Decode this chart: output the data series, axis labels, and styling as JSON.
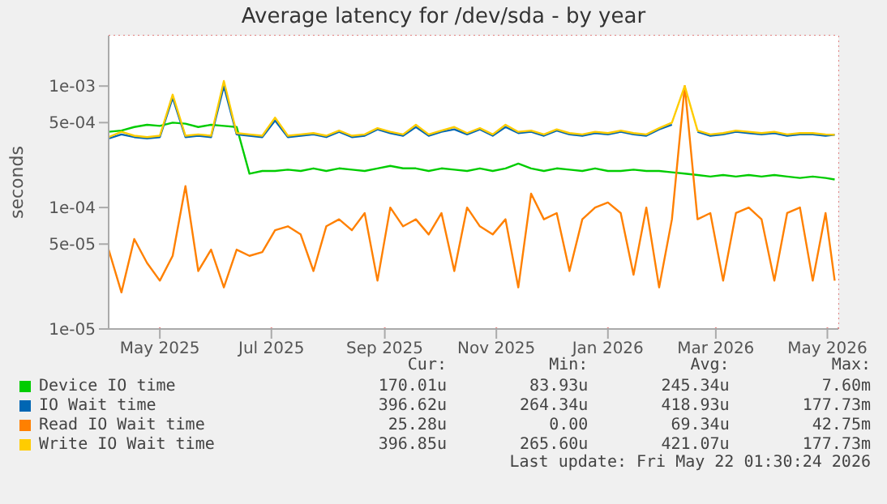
{
  "chart_data": {
    "type": "line",
    "title": "Average latency for /dev/sda - by year",
    "ylabel": "seconds",
    "log": "y",
    "grid": true,
    "legend": "bottom",
    "marker": "none",
    "line_style": "solid",
    "xlim": [
      "2025-04-03",
      "2026-05-07"
    ],
    "xticks": [
      {
        "value": "2025-05-01",
        "label": "May 2025"
      },
      {
        "value": "2025-07-01",
        "label": "Jul 2025"
      },
      {
        "value": "2025-09-01",
        "label": "Sep 2025"
      },
      {
        "value": "2025-11-01",
        "label": "Nov 2025"
      },
      {
        "value": "2026-01-01",
        "label": "Jan 2026"
      },
      {
        "value": "2026-03-01",
        "label": "Mar 2026"
      },
      {
        "value": "2026-05-01",
        "label": "May 2026"
      }
    ],
    "ylim": [
      1e-05,
      0.0026
    ],
    "yticks": [
      {
        "value": 1e-05,
        "label": "1e-05"
      },
      {
        "value": 5e-05,
        "label": "5e-05"
      },
      {
        "value": 0.0001,
        "label": "1e-04"
      },
      {
        "value": 0.0005,
        "label": "5e-04"
      },
      {
        "value": 0.001,
        "label": "1e-03"
      }
    ],
    "x": [
      "2025-04-03",
      "2025-04-10",
      "2025-04-17",
      "2025-04-24",
      "2025-05-01",
      "2025-05-08",
      "2025-05-15",
      "2025-05-22",
      "2025-05-29",
      "2025-06-05",
      "2025-06-12",
      "2025-06-19",
      "2025-06-26",
      "2025-07-03",
      "2025-07-10",
      "2025-07-17",
      "2025-07-24",
      "2025-07-31",
      "2025-08-07",
      "2025-08-14",
      "2025-08-21",
      "2025-08-28",
      "2025-09-04",
      "2025-09-11",
      "2025-09-18",
      "2025-09-25",
      "2025-10-02",
      "2025-10-09",
      "2025-10-16",
      "2025-10-23",
      "2025-10-30",
      "2025-11-06",
      "2025-11-13",
      "2025-11-20",
      "2025-11-27",
      "2025-12-04",
      "2025-12-11",
      "2025-12-18",
      "2025-12-25",
      "2026-01-01",
      "2026-01-08",
      "2026-01-15",
      "2026-01-22",
      "2026-01-29",
      "2026-02-05",
      "2026-02-12",
      "2026-02-19",
      "2026-02-26",
      "2026-03-05",
      "2026-03-12",
      "2026-03-19",
      "2026-03-26",
      "2026-04-02",
      "2026-04-09",
      "2026-04-16",
      "2026-04-23",
      "2026-04-30",
      "2026-05-05"
    ],
    "series": [
      {
        "name": "Device IO time",
        "color": "#00cc00",
        "values": [
          0.00042,
          0.00043,
          0.00046,
          0.00048,
          0.00047,
          0.0005,
          0.00049,
          0.00046,
          0.00048,
          0.00047,
          0.00046,
          0.00019,
          0.0002,
          0.0002,
          0.000205,
          0.0002,
          0.00021,
          0.0002,
          0.00021,
          0.000205,
          0.0002,
          0.00021,
          0.00022,
          0.00021,
          0.00021,
          0.0002,
          0.00021,
          0.000205,
          0.0002,
          0.00021,
          0.0002,
          0.00021,
          0.00023,
          0.00021,
          0.0002,
          0.00021,
          0.000205,
          0.0002,
          0.00021,
          0.0002,
          0.0002,
          0.000205,
          0.0002,
          0.0002,
          0.000195,
          0.00019,
          0.000185,
          0.00018,
          0.000185,
          0.00018,
          0.000185,
          0.00018,
          0.000185,
          0.00018,
          0.000175,
          0.00018,
          0.000175,
          0.00017
        ]
      },
      {
        "name": "IO Wait time",
        "color": "#0066b3",
        "values": [
          0.00037,
          0.0004,
          0.00038,
          0.00037,
          0.00038,
          0.0008,
          0.00038,
          0.00039,
          0.00038,
          0.001,
          0.0004,
          0.00039,
          0.00038,
          0.00052,
          0.00038,
          0.00039,
          0.0004,
          0.00038,
          0.00042,
          0.00038,
          0.00039,
          0.00044,
          0.00041,
          0.00039,
          0.00046,
          0.00039,
          0.00042,
          0.00044,
          0.0004,
          0.00044,
          0.00039,
          0.00046,
          0.00041,
          0.00042,
          0.00039,
          0.00043,
          0.0004,
          0.00039,
          0.00041,
          0.0004,
          0.00042,
          0.0004,
          0.00039,
          0.00044,
          0.00048,
          null,
          0.00042,
          0.00039,
          0.0004,
          0.00042,
          0.00041,
          0.0004,
          0.00041,
          0.00039,
          0.0004,
          0.0004,
          0.00039,
          0.000397
        ]
      },
      {
        "name": "Read IO Wait time",
        "color": "#ff8000",
        "values": [
          4.5e-05,
          2e-05,
          5.5e-05,
          3.5e-05,
          2.5e-05,
          4e-05,
          0.00015,
          3e-05,
          4.5e-05,
          2.2e-05,
          4.5e-05,
          4e-05,
          4.3e-05,
          6.5e-05,
          7e-05,
          6e-05,
          3e-05,
          7e-05,
          8e-05,
          6.5e-05,
          9e-05,
          2.5e-05,
          0.0001,
          7e-05,
          8e-05,
          6e-05,
          9e-05,
          3e-05,
          0.0001,
          7e-05,
          6e-05,
          8e-05,
          2.2e-05,
          0.00013,
          8e-05,
          9e-05,
          3e-05,
          8e-05,
          0.0001,
          0.00011,
          9e-05,
          2.8e-05,
          0.0001,
          2.2e-05,
          8e-05,
          0.001,
          8e-05,
          9e-05,
          2.5e-05,
          9e-05,
          0.0001,
          8e-05,
          2.5e-05,
          9e-05,
          0.0001,
          2.5e-05,
          9e-05,
          2.5e-05
        ]
      },
      {
        "name": "Write IO Wait time",
        "color": "#ffcc00",
        "values": [
          0.00038,
          0.00042,
          0.00039,
          0.00038,
          0.00039,
          0.00085,
          0.00039,
          0.0004,
          0.00039,
          0.0011,
          0.00041,
          0.0004,
          0.00039,
          0.00055,
          0.00039,
          0.0004,
          0.00041,
          0.00039,
          0.00043,
          0.00039,
          0.0004,
          0.00045,
          0.00042,
          0.0004,
          0.00048,
          0.0004,
          0.00043,
          0.00046,
          0.00041,
          0.00045,
          0.0004,
          0.00048,
          0.00042,
          0.00043,
          0.0004,
          0.00044,
          0.00041,
          0.0004,
          0.00042,
          0.00041,
          0.00043,
          0.00041,
          0.0004,
          0.00045,
          0.0005,
          0.001,
          0.00043,
          0.0004,
          0.00041,
          0.00043,
          0.00042,
          0.00041,
          0.00042,
          0.0004,
          0.00041,
          0.00041,
          0.0004,
          0.000397
        ]
      }
    ],
    "annotations": [
      "Cur:",
      "Min:",
      "Avg:",
      "Max:",
      "170.01u",
      "83.93u",
      "245.34u",
      "7.60m",
      "396.62u",
      "264.34u",
      "418.93u",
      "177.73m",
      "25.28u",
      "0.00",
      "69.34u",
      "42.75m",
      "396.85u",
      "265.60u",
      "421.07u",
      "177.73m",
      "Last update: Fri May 22 01:30:24 2026"
    ]
  }
}
